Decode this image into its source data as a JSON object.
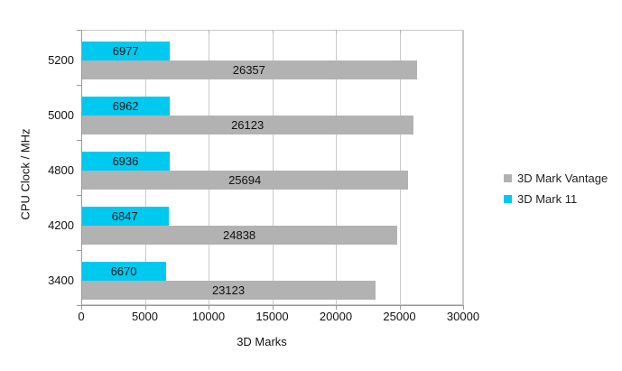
{
  "colors": {
    "background": "#ffffff",
    "gridline": "#c9c9c9",
    "axis": "#999999",
    "label_text": "#111111",
    "series_vantage": "#b2b2b2",
    "series_mark11": "#00c9ef"
  },
  "chart_data": {
    "type": "bar",
    "orientation": "horizontal",
    "title": "",
    "xlabel": "3D Marks",
    "ylabel": "CPU Clock / MHz",
    "categories": [
      "5200",
      "5000",
      "4800",
      "4200",
      "3400"
    ],
    "series": [
      {
        "name": "3D Mark Vantage",
        "color": "#b2b2b2",
        "values": [
          26357,
          26123,
          25694,
          24838,
          23123
        ]
      },
      {
        "name": "3D Mark 11",
        "color": "#00c9ef",
        "values": [
          6977,
          6962,
          6936,
          6847,
          6670
        ]
      }
    ],
    "data_labels": [
      {
        "category": "5200",
        "3D Mark Vantage": "26357",
        "3D Mark 11": "6977"
      },
      {
        "category": "5000",
        "3D Mark Vantage": "26123",
        "3D Mark 11": "6962"
      },
      {
        "category": "4800",
        "3D Mark Vantage": "25694",
        "3D Mark 11": "6936"
      },
      {
        "category": "4200",
        "3D Mark Vantage": "24838",
        "3D Mark 11": "6847"
      },
      {
        "category": "3400",
        "3D Mark Vantage": "23123",
        "3D Mark 11": "6670"
      }
    ],
    "xlim": [
      0,
      30000
    ],
    "xtick_step": 5000,
    "xtick_labels": [
      "0",
      "5000",
      "10000",
      "15000",
      "20000",
      "25000",
      "30000"
    ],
    "grid": "vertical",
    "legend_position": "right",
    "legend_entries": [
      "3D Mark Vantage",
      "3D Mark 11"
    ]
  }
}
